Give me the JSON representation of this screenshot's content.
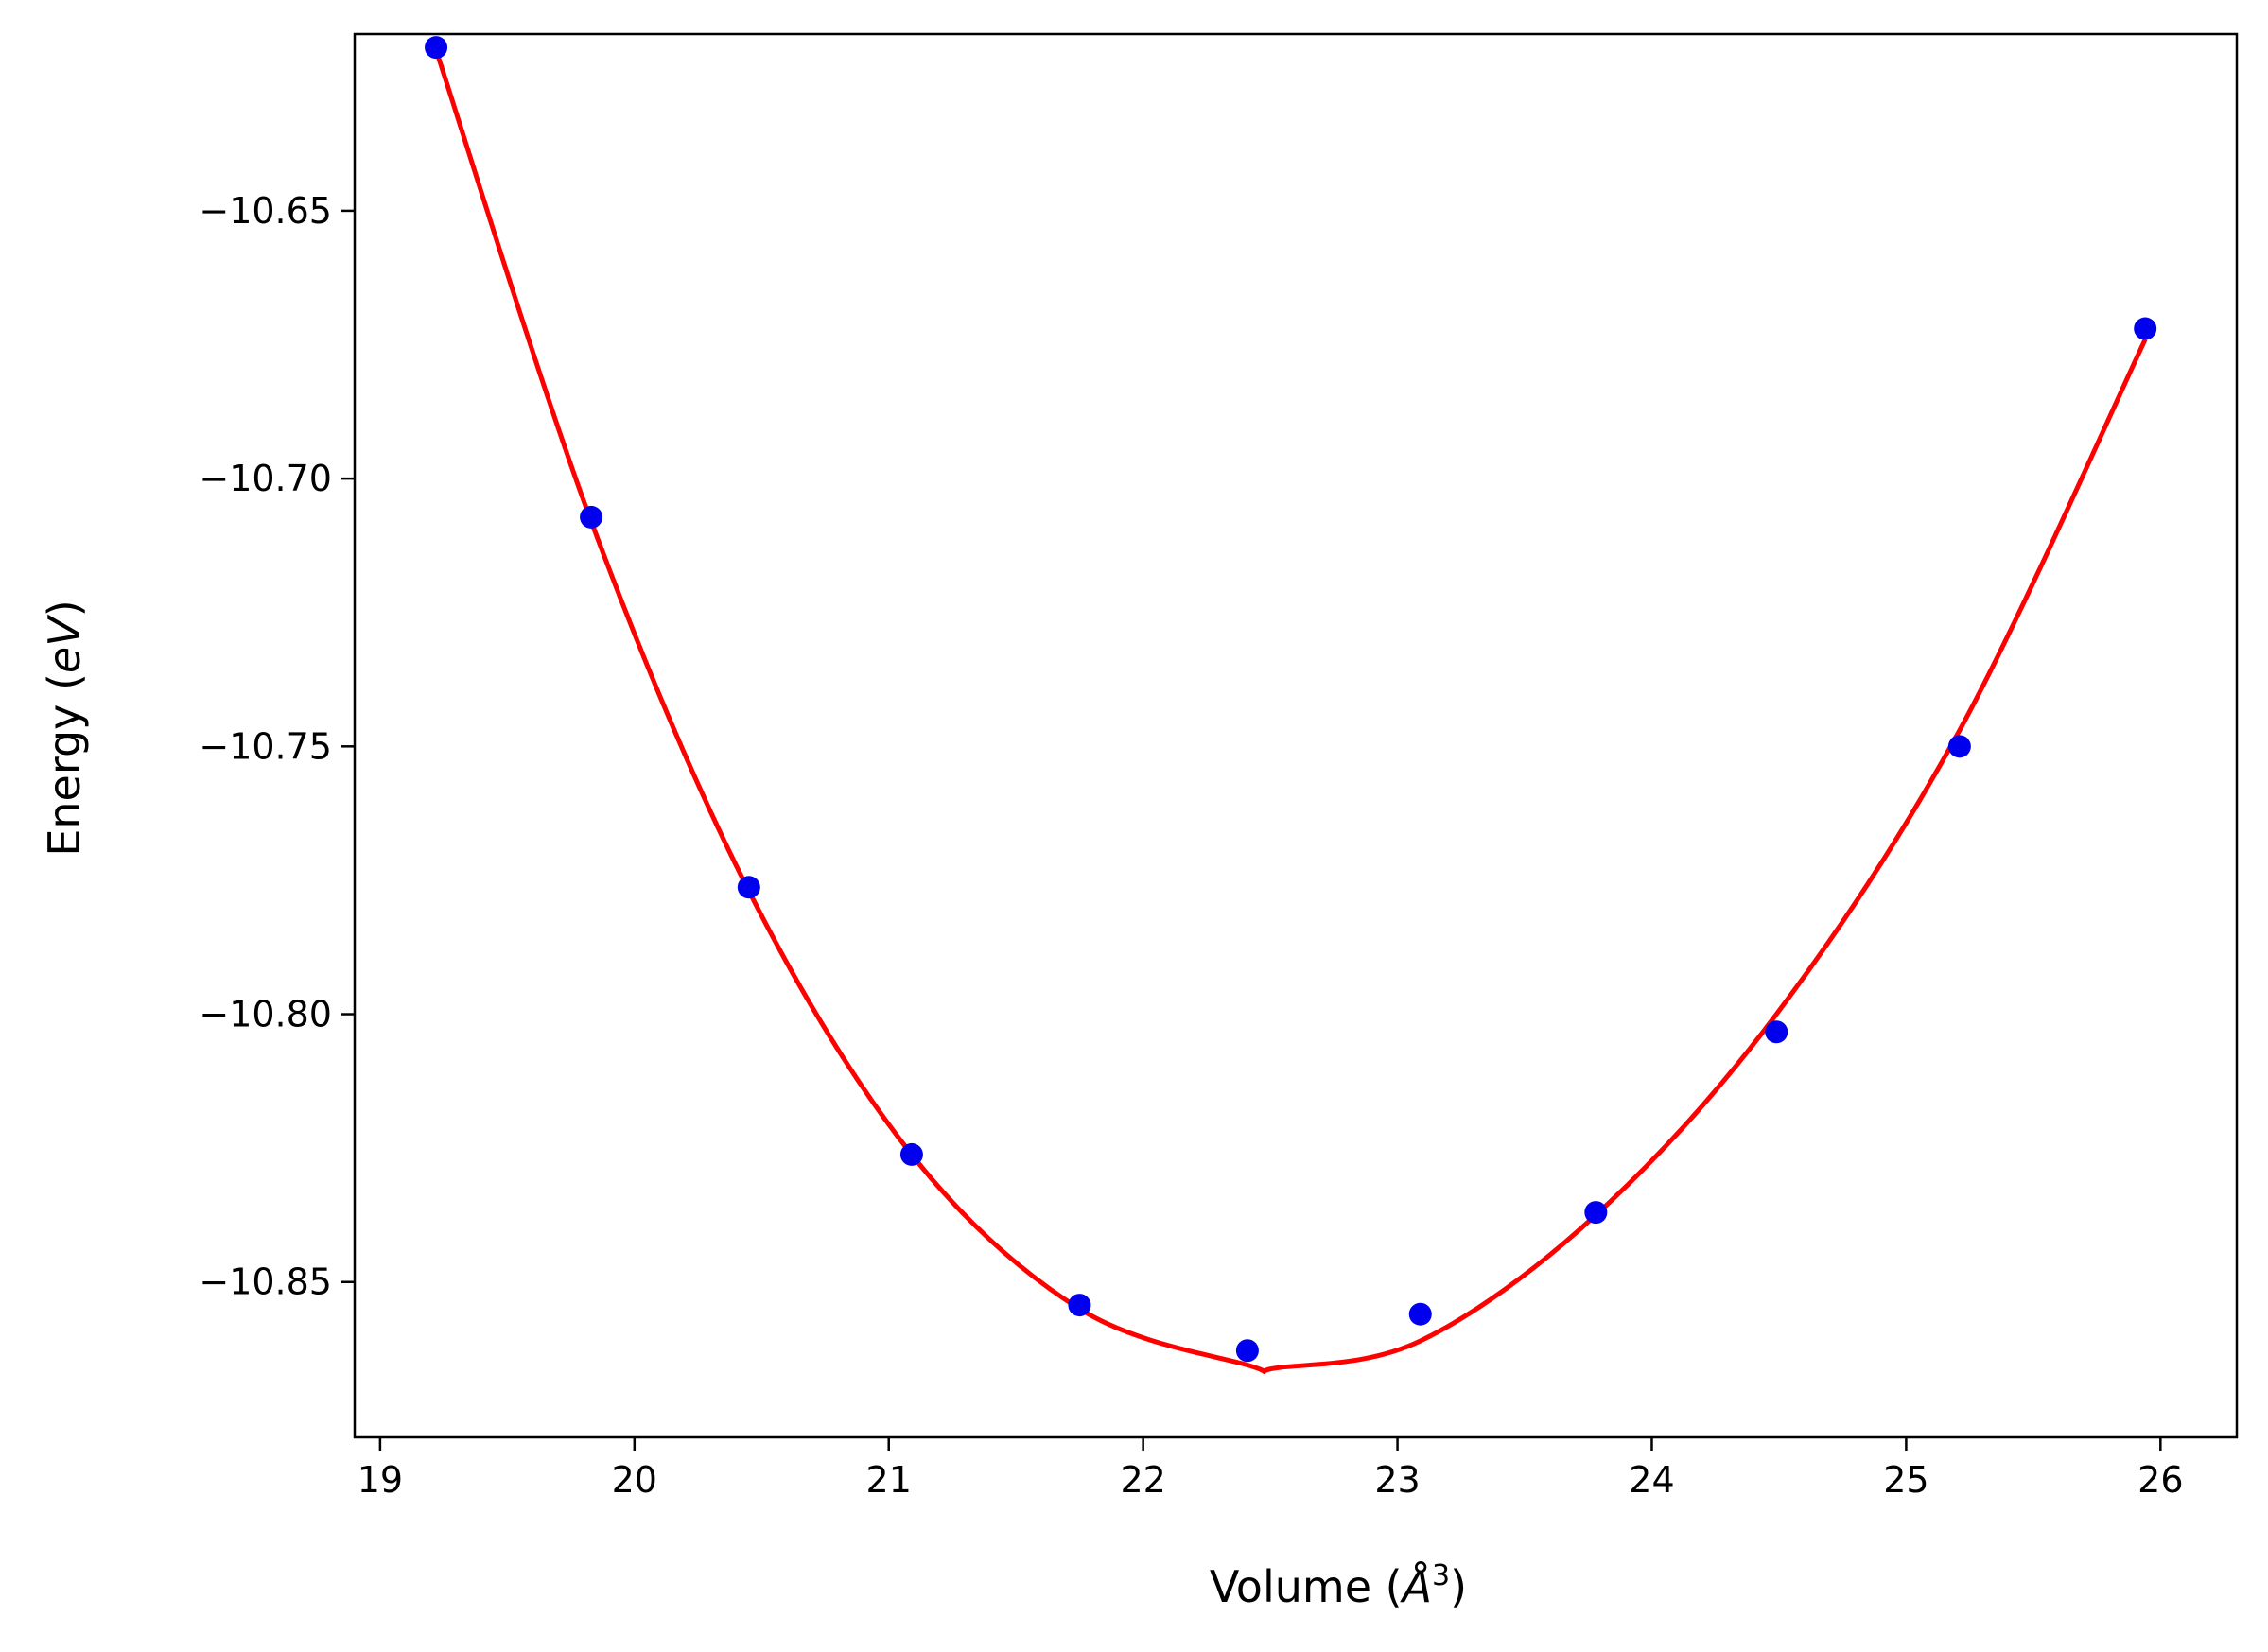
{
  "chart_data": {
    "type": "scatter",
    "xlabel": "Volume",
    "xlabel_unit_symbol": "Å",
    "xlabel_unit_exponent": "3",
    "ylabel": "Energy",
    "ylabel_unit": "eV",
    "xlim": [
      18.9,
      26.3
    ],
    "ylim": [
      -10.879,
      -10.617
    ],
    "x_ticks": [
      19,
      20,
      21,
      22,
      23,
      24,
      25,
      26
    ],
    "x_tick_labels": [
      "19",
      "20",
      "21",
      "22",
      "23",
      "24",
      "25",
      "26"
    ],
    "y_ticks": [
      -10.65,
      -10.7,
      -10.75,
      -10.8,
      -10.85
    ],
    "y_tick_labels": [
      "−10.65",
      "−10.70",
      "−10.75",
      "−10.80",
      "−10.85"
    ],
    "grid": false,
    "legend": "none",
    "series": [
      {
        "type": "scatter",
        "color": "#0000ee",
        "x": [
          19.22,
          19.83,
          20.45,
          21.09,
          21.75,
          22.41,
          23.09,
          23.78,
          24.49,
          25.21,
          25.94
        ],
        "y": [
          -10.6195,
          -10.7072,
          -10.7763,
          -10.8262,
          -10.8543,
          -10.8628,
          -10.856,
          -10.837,
          -10.8033,
          -10.75,
          -10.672
        ]
      },
      {
        "type": "line",
        "color": "#ff0000",
        "x": [
          19.22,
          19.83,
          20.45,
          21.09,
          21.75,
          22.41,
          22.53,
          23.09,
          23.78,
          24.49,
          25.21,
          25.94
        ],
        "y": [
          -10.62,
          -10.708,
          -10.777,
          -10.8262,
          -10.855,
          -10.8655,
          -10.866,
          -10.861,
          -10.8375,
          -10.8,
          -10.747,
          -10.674
        ]
      }
    ]
  }
}
